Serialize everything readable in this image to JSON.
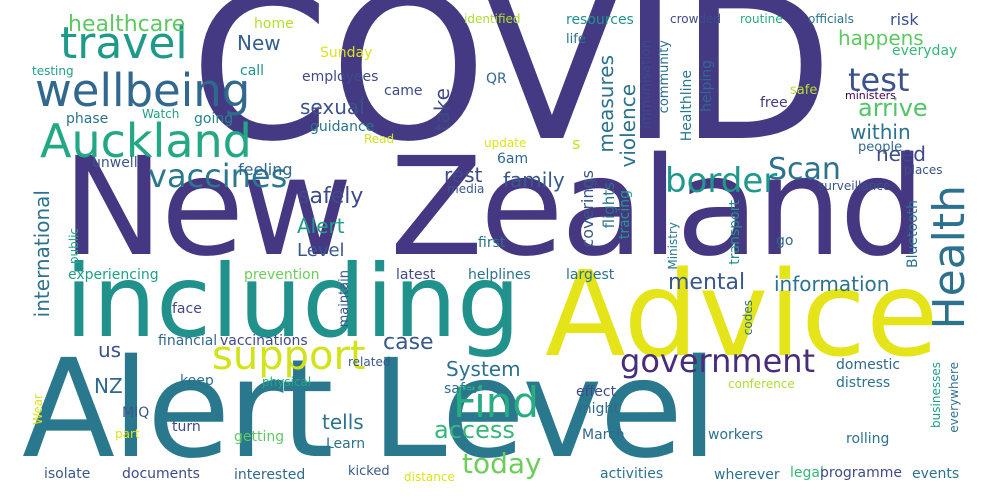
{
  "words": [
    {
      "text": "COVID",
      "color": "#443a83"
    },
    {
      "text": "New Zealand",
      "color": "#453781"
    },
    {
      "text": "Alert Level",
      "color": "#2a788e"
    },
    {
      "text": "Advice",
      "color": "#e5e419"
    },
    {
      "text": "including",
      "color": "#21918c"
    },
    {
      "text": "Health",
      "color": "#2c718e"
    },
    {
      "text": "Auckland",
      "color": "#22a884"
    },
    {
      "text": "wellbeing",
      "color": "#31688e"
    },
    {
      "text": "travel",
      "color": "#1f9a8a"
    },
    {
      "text": "support",
      "color": "#d2e21b"
    },
    {
      "text": "Find",
      "color": "#27ad81"
    },
    {
      "text": "government",
      "color": "#472d7b"
    },
    {
      "text": "vaccines",
      "color": "#2a788e"
    },
    {
      "text": "border",
      "color": "#1f988b"
    },
    {
      "text": "Scan",
      "color": "#2c728e"
    },
    {
      "text": "test",
      "color": "#3b528b"
    },
    {
      "text": "today",
      "color": "#6ccd5a"
    },
    {
      "text": "healthcare",
      "color": "#5ec962"
    },
    {
      "text": "New",
      "color": "#355f8d"
    },
    {
      "text": "home",
      "color": "#b5de2b"
    },
    {
      "text": "identified",
      "color": "#addc30"
    },
    {
      "text": "crowded",
      "color": "#3e4a89"
    },
    {
      "text": "routine",
      "color": "#26ad81"
    },
    {
      "text": "officials",
      "color": "#2c728e"
    },
    {
      "text": "risk",
      "color": "#3b528b"
    },
    {
      "text": "everyday",
      "color": "#35b779"
    },
    {
      "text": "happens",
      "color": "#5ec962"
    },
    {
      "text": "arrive",
      "color": "#52c569"
    },
    {
      "text": "within",
      "color": "#2c728e"
    },
    {
      "text": "need",
      "color": "#3e4a89"
    },
    {
      "text": "places",
      "color": "#3b528b"
    },
    {
      "text": "surveillance",
      "color": "#3b528b"
    },
    {
      "text": "people",
      "color": "#31688e"
    },
    {
      "text": "ministers",
      "color": "#440154"
    },
    {
      "text": "safe",
      "color": "#b5de2b"
    },
    {
      "text": "free",
      "color": "#443983"
    },
    {
      "text": "Ministry",
      "color": "#2a788e"
    },
    {
      "text": "Healthline",
      "color": "#2a788e"
    },
    {
      "text": "helping",
      "color": "#31688e"
    },
    {
      "text": "community",
      "color": "#2c728e"
    },
    {
      "text": "immunisation",
      "color": "#3e4a89"
    },
    {
      "text": "resources",
      "color": "#21918c"
    },
    {
      "text": "life",
      "color": "#2c728e"
    },
    {
      "text": "measures",
      "color": "#2c728e"
    },
    {
      "text": "violence",
      "color": "#2c728e"
    },
    {
      "text": "take",
      "color": "#3e4a89"
    },
    {
      "text": "sexual",
      "color": "#3b528b"
    },
    {
      "text": "guidance",
      "color": "#2c728e"
    },
    {
      "text": "came",
      "color": "#3e4a89"
    },
    {
      "text": "QR",
      "color": "#31688e"
    },
    {
      "text": "employees",
      "color": "#3e4a89"
    },
    {
      "text": "Sunday",
      "color": "#dde318"
    },
    {
      "text": "call",
      "color": "#21918c"
    },
    {
      "text": "testing",
      "color": "#1f9e89"
    },
    {
      "text": "phase",
      "color": "#2c728e"
    },
    {
      "text": "Watch",
      "color": "#1f9e89"
    },
    {
      "text": "going",
      "color": "#26828e"
    },
    {
      "text": "Read",
      "color": "#d2e21b"
    },
    {
      "text": "update",
      "color": "#dde318"
    },
    {
      "text": "6am",
      "color": "#31688e"
    },
    {
      "text": "s",
      "color": "#c8e020"
    },
    {
      "text": "rest",
      "color": "#3e4a89"
    },
    {
      "text": "family",
      "color": "#38588c"
    },
    {
      "text": "feeling",
      "color": "#31688e"
    },
    {
      "text": "safely",
      "color": "#3e4a89"
    },
    {
      "text": "unwell",
      "color": "#38588c"
    },
    {
      "text": "Alert",
      "color": "#1f9e89"
    },
    {
      "text": "Level",
      "color": "#38588c"
    },
    {
      "text": "international",
      "color": "#2c728e"
    },
    {
      "text": "public",
      "color": "#22a884"
    },
    {
      "text": "media",
      "color": "#38588c"
    },
    {
      "text": "tracing",
      "color": "#1f9a8a"
    },
    {
      "text": "flights",
      "color": "#2c728e"
    },
    {
      "text": "coverings",
      "color": "#38588c"
    },
    {
      "text": "transport",
      "color": "#21918c"
    },
    {
      "text": "Bluetooth",
      "color": "#2c728e"
    },
    {
      "text": "go",
      "color": "#31688e"
    },
    {
      "text": "first",
      "color": "#2c728e"
    },
    {
      "text": "experiencing",
      "color": "#1f9e89"
    },
    {
      "text": "prevention",
      "color": "#6ccd5a"
    },
    {
      "text": "latest",
      "color": "#3e4a89"
    },
    {
      "text": "helplines",
      "color": "#2c728e"
    },
    {
      "text": "largest",
      "color": "#2c728e"
    },
    {
      "text": "mental",
      "color": "#38588c"
    },
    {
      "text": "information",
      "color": "#2c728e"
    },
    {
      "text": "us",
      "color": "#3b528b"
    },
    {
      "text": "face",
      "color": "#3e4a89"
    },
    {
      "text": "maintain",
      "color": "#38588c"
    },
    {
      "text": "case",
      "color": "#38588c"
    },
    {
      "text": "System",
      "color": "#2c728e"
    },
    {
      "text": "codes",
      "color": "#2c728e"
    },
    {
      "text": "domestic",
      "color": "#31688e"
    },
    {
      "text": "distress",
      "color": "#2c728e"
    },
    {
      "text": "businesses",
      "color": "#1f9e89"
    },
    {
      "text": "everywhere",
      "color": "#2c728e"
    },
    {
      "text": "financial",
      "color": "#31688e"
    },
    {
      "text": "vaccinations",
      "color": "#3e4a89"
    },
    {
      "text": "related",
      "color": "#38588c"
    },
    {
      "text": "NZ",
      "color": "#31688e"
    },
    {
      "text": "keep",
      "color": "#2c728e"
    },
    {
      "text": "physical",
      "color": "#22a884"
    },
    {
      "text": "safer",
      "color": "#2c728e"
    },
    {
      "text": "effect",
      "color": "#3e4a89"
    },
    {
      "text": "might",
      "color": "#31688e"
    },
    {
      "text": "conference",
      "color": "#addc30"
    },
    {
      "text": "MIQ",
      "color": "#38588c"
    },
    {
      "text": "Wear",
      "color": "#dde318"
    },
    {
      "text": "part",
      "color": "#dde318"
    },
    {
      "text": "turn",
      "color": "#3e4a89"
    },
    {
      "text": "getting",
      "color": "#5ec962"
    },
    {
      "text": "tells",
      "color": "#2c728e"
    },
    {
      "text": "Learn",
      "color": "#2c728e"
    },
    {
      "text": "access",
      "color": "#35b779"
    },
    {
      "text": "March",
      "color": "#31688e"
    },
    {
      "text": "workers",
      "color": "#2c728e"
    },
    {
      "text": "rolling",
      "color": "#2c728e"
    },
    {
      "text": "isolate",
      "color": "#38588c"
    },
    {
      "text": "documents",
      "color": "#3e4a89"
    },
    {
      "text": "interested",
      "color": "#31688e"
    },
    {
      "text": "kicked",
      "color": "#38588c"
    },
    {
      "text": "distance",
      "color": "#dde318"
    },
    {
      "text": "activities",
      "color": "#2c728e"
    },
    {
      "text": "wherever",
      "color": "#2c728e"
    },
    {
      "text": "legal",
      "color": "#35b779"
    },
    {
      "text": "programme",
      "color": "#3e4a89"
    },
    {
      "text": "events",
      "color": "#2c728e"
    }
  ]
}
